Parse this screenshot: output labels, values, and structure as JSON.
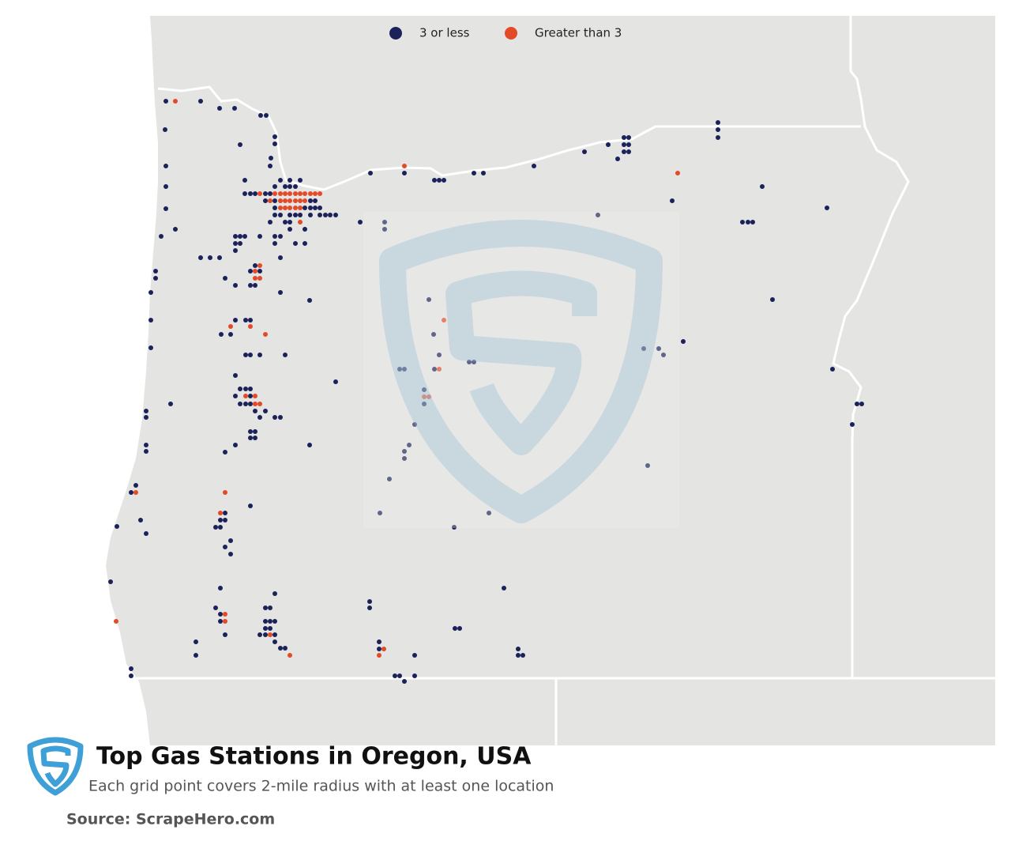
{
  "legend": {
    "items": [
      {
        "label": "3 or less",
        "color": "#1b2259"
      },
      {
        "label": "Greater than 3",
        "color": "#e34a27"
      }
    ]
  },
  "title": "Top Gas Stations in Oregon, USA",
  "subtitle": "Each grid point covers 2-mile radius with at least one location",
  "source": "Source: ScrapeHero.com"
}
